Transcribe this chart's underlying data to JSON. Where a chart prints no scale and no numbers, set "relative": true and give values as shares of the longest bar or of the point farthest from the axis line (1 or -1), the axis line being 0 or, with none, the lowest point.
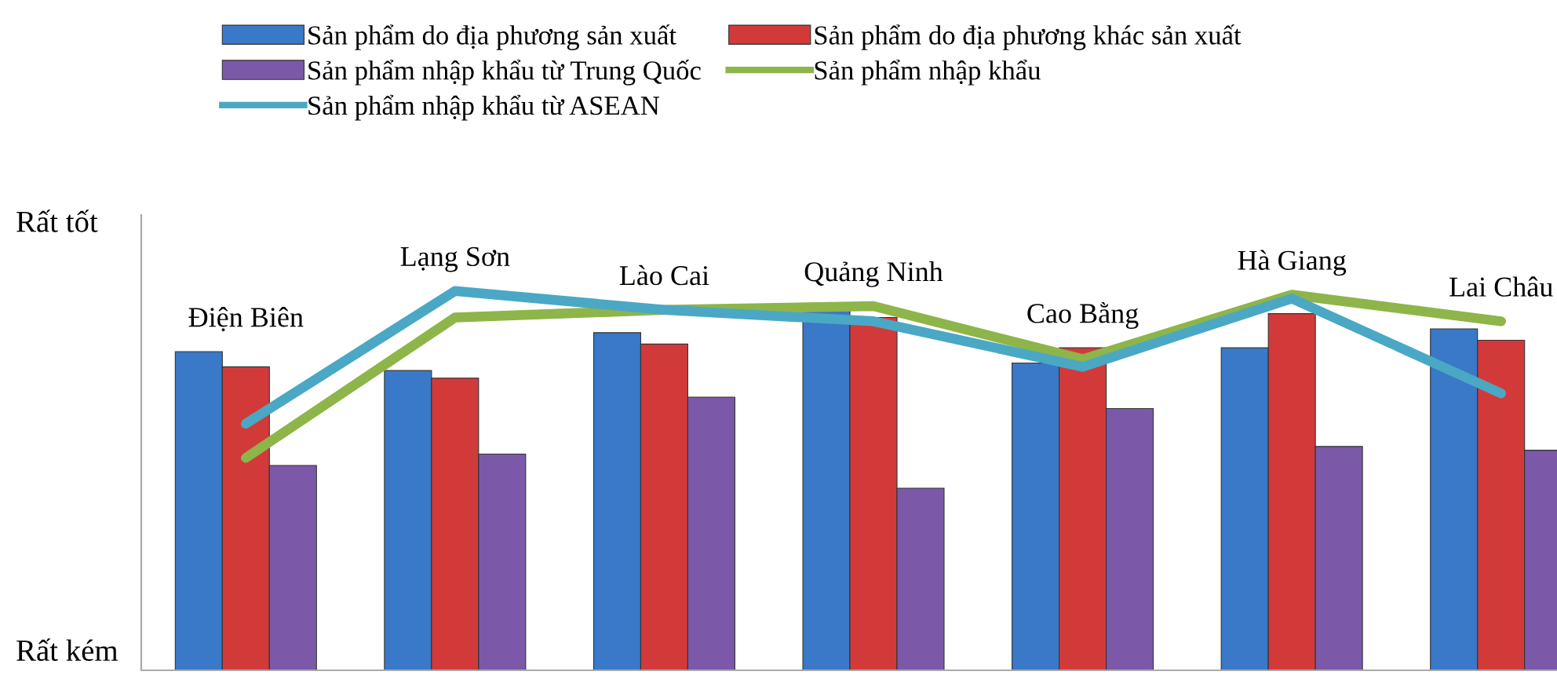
{
  "chart_data": {
    "type": "bar",
    "relative": true,
    "categories": [
      "Điện Biên",
      "Lạng Sơn",
      "Lào Cai",
      "Quảng Ninh",
      "Cao Bằng",
      "Hà Giang",
      "Lai Châu"
    ],
    "series": [
      {
        "name": "Sản phẩm do địa phương sản xuất",
        "color": "#3a78c8",
        "values": [
          0.84,
          0.79,
          0.89,
          0.95,
          0.81,
          0.85,
          0.9
        ]
      },
      {
        "name": "Sản phẩm do địa phương khác sản xuất",
        "color": "#d23a3a",
        "values": [
          0.8,
          0.77,
          0.86,
          0.93,
          0.85,
          0.94,
          0.87
        ]
      },
      {
        "name": "Sản phẩm nhập khẩu từ Trung Quốc",
        "color": "#7b59a8",
        "values": [
          0.54,
          0.57,
          0.72,
          0.48,
          0.69,
          0.59,
          0.58
        ]
      },
      {
        "name": "Sản phẩm nhập khẩu",
        "type": "line",
        "color": "#8db54a",
        "values": [
          0.56,
          0.93,
          0.95,
          0.96,
          0.82,
          0.99,
          0.92
        ]
      },
      {
        "name": "Sản phẩm nhập khẩu từ ASEAN",
        "type": "line",
        "color": "#4aa8c4",
        "values": [
          0.65,
          1.0,
          0.95,
          0.92,
          0.8,
          0.98,
          0.73
        ]
      }
    ],
    "annotations": [
      "Rất tốt",
      "Rất kém"
    ],
    "legend": "top",
    "marker": "none",
    "line_style": "solid"
  }
}
